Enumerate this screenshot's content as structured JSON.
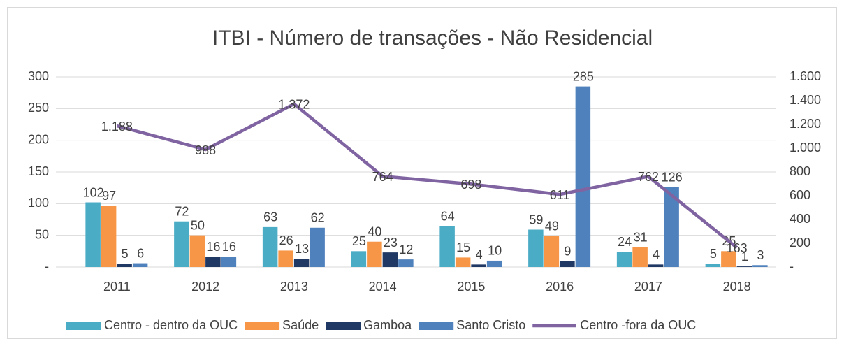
{
  "chart_data": {
    "type": "bar",
    "title": "ITBI - Número de transações - Não Residencial",
    "categories": [
      "2011",
      "2012",
      "2013",
      "2014",
      "2015",
      "2016",
      "2017",
      "2018"
    ],
    "series": [
      {
        "name": "Centro - dentro da OUC",
        "color": "#4bacc6",
        "values": [
          102,
          72,
          63,
          25,
          64,
          59,
          24,
          5
        ]
      },
      {
        "name": "Saúde",
        "color": "#f79646",
        "values": [
          97,
          50,
          26,
          40,
          15,
          49,
          31,
          25
        ]
      },
      {
        "name": "Gamboa",
        "color": "#1f3864",
        "values": [
          5,
          16,
          13,
          23,
          4,
          9,
          4,
          1
        ]
      },
      {
        "name": "Santo Cristo",
        "color": "#4f81bd",
        "values": [
          6,
          16,
          62,
          12,
          10,
          285,
          126,
          3
        ]
      },
      {
        "name": "Centro -fora da OUC",
        "color": "#8064a2",
        "type": "line",
        "axis": "y2",
        "values": [
          1188,
          988,
          1372,
          764,
          698,
          611,
          762,
          163
        ],
        "value_labels": [
          "1.188",
          "988",
          "1.372",
          "764",
          "698",
          "611",
          "762",
          "163"
        ]
      }
    ],
    "ylim": [
      0,
      300
    ],
    "yticks": [
      {
        "value": 0,
        "label": "-"
      },
      50,
      100,
      150,
      200,
      250,
      300
    ],
    "y2lim": [
      0,
      1600
    ],
    "y2ticks": [
      {
        "value": 0,
        "label": "-"
      },
      200,
      400,
      600,
      800,
      {
        "value": 1000,
        "label": "1.000"
      },
      {
        "value": 1200,
        "label": "1.200"
      },
      {
        "value": 1400,
        "label": "1.400"
      },
      {
        "value": 1600,
        "label": "1.600"
      }
    ],
    "grid": true,
    "legend": "bottom"
  }
}
